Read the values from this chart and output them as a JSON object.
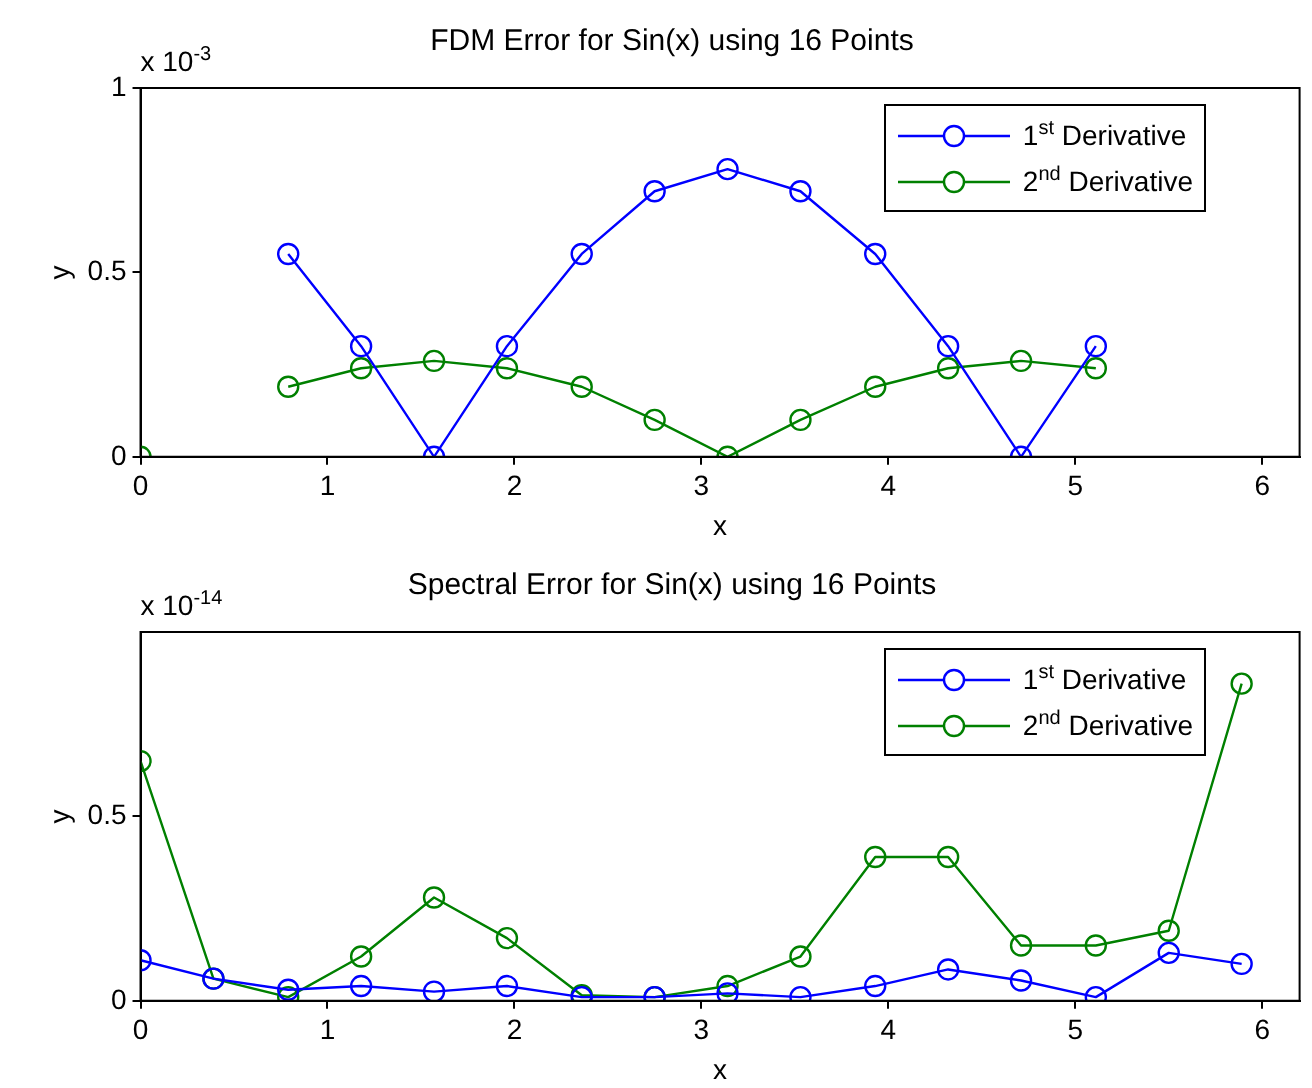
{
  "chart_data": [
    {
      "type": "line",
      "title": "FDM Error for Sin(x) using 16 Points",
      "xlabel": "x",
      "ylabel": "y",
      "annotations": [
        "x 10$^{-3}$"
      ],
      "x": [
        0,
        0.39,
        0.79,
        1.18,
        1.57,
        1.96,
        2.36,
        2.75,
        3.14,
        3.53,
        3.93,
        4.32,
        4.71,
        5.11
      ],
      "series": [
        {
          "name": "1$^{st}$ Derivative",
          "color": "#0000ff",
          "values": [
            null,
            null,
            0.55,
            0.3,
            0,
            0.3,
            0.55,
            0.72,
            0.78,
            0.72,
            0.55,
            0.3,
            0,
            0.3
          ]
        },
        {
          "name": "2$^{nd}$ Derivative",
          "color": "#008000",
          "values": [
            0,
            null,
            0.19,
            0.24,
            0.26,
            0.24,
            0.19,
            0.1,
            0,
            0.1,
            0.19,
            0.24,
            0.26,
            0.24
          ]
        }
      ],
      "xlim": [
        0,
        6.2
      ],
      "xticks": [
        0,
        1,
        2,
        3,
        4,
        5,
        6
      ],
      "ylim": [
        0,
        1
      ],
      "yticks": [
        0,
        0.5,
        1
      ],
      "grid": false,
      "legend": "top right",
      "marker": "circle",
      "line_style": "solid"
    },
    {
      "type": "line",
      "title": "Spectral Error for Sin(x) using 16 Points",
      "xlabel": "x",
      "ylabel": "y",
      "annotations": [
        "x 10$^{-14}$"
      ],
      "x": [
        0,
        0.39,
        0.79,
        1.18,
        1.57,
        1.96,
        2.36,
        2.75,
        3.14,
        3.53,
        3.93,
        4.32,
        4.71,
        5.11,
        5.5,
        5.89
      ],
      "series": [
        {
          "name": "1$^{st}$ Derivative",
          "color": "#0000ff",
          "values": [
            0.11,
            0.06,
            0.03,
            0.04,
            0.025,
            0.04,
            0.01,
            0.01,
            0.02,
            0.01,
            0.04,
            0.085,
            0.055,
            0.01,
            0.13,
            0.1
          ]
        },
        {
          "name": "2$^{nd}$ Derivative",
          "color": "#008000",
          "values": [
            0.65,
            0.06,
            0.01,
            0.12,
            0.28,
            0.17,
            0.015,
            0.01,
            0.04,
            0.12,
            0.39,
            0.39,
            0.15,
            0.15,
            0.19,
            0.86
          ]
        }
      ],
      "xlim": [
        0,
        6.2
      ],
      "xticks": [
        0,
        1,
        2,
        3,
        4,
        5,
        6
      ],
      "ylim": [
        0,
        1
      ],
      "yticks": [
        0,
        0.5
      ],
      "grid": false,
      "legend": "top right",
      "marker": "circle",
      "line_style": "solid"
    }
  ]
}
